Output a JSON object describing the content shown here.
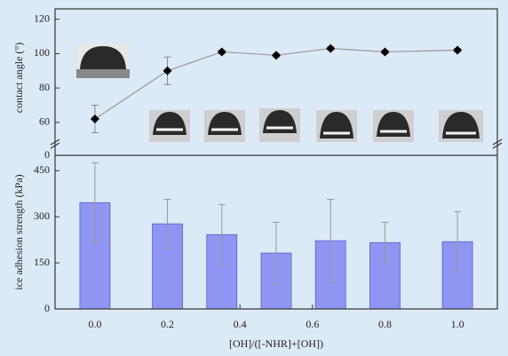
{
  "chart_data": [
    {
      "type": "line",
      "y_label": "contact angle (°)",
      "x": [
        0,
        0.2,
        0.35,
        0.5,
        0.65,
        0.8,
        1.0
      ],
      "values": [
        62,
        90,
        101,
        99,
        103,
        101,
        102
      ],
      "errors": [
        8,
        8,
        1,
        1,
        1,
        1,
        1
      ],
      "color": "#000000",
      "xlim": [
        -0.11,
        1.11
      ],
      "ylim": [
        46,
        126
      ],
      "yticks": [
        60,
        80,
        100,
        120
      ]
    },
    {
      "type": "bar",
      "y_label": "ice adhesion strength (kPa)",
      "x_label": "[OH]/([-NHR]+[OH])",
      "axis_break_label": "0",
      "x": [
        0,
        0.2,
        0.35,
        0.5,
        0.65,
        0.8,
        1.0
      ],
      "values": [
        346,
        277,
        242,
        182,
        222,
        216,
        219
      ],
      "errors": [
        130,
        80,
        98,
        100,
        135,
        66,
        98
      ],
      "color": "#8f95f2",
      "xlim": [
        -0.11,
        1.11
      ],
      "ylim": [
        0,
        500
      ],
      "yticks": [
        0,
        150,
        300,
        450
      ],
      "xticks": [
        {
          "value": 0,
          "label": "0.0"
        },
        0.2,
        0.4,
        0.6,
        0.8,
        {
          "value": 1,
          "label": "1.0"
        }
      ]
    }
  ]
}
